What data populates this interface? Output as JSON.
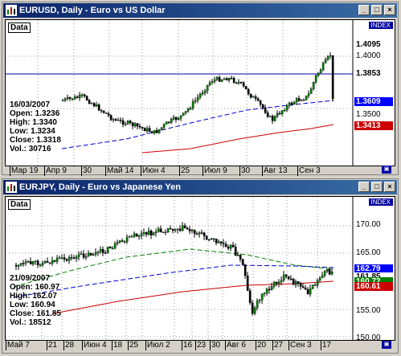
{
  "window1": {
    "title": "EURUSD, Daily - Euro vs US Dollar",
    "data_label": "Data",
    "index_label": "INDEX",
    "info": {
      "date": "16/03/2007",
      "open": "Open: 1.3236",
      "high": "High: 1.3340",
      "low": "Low: 1.3234",
      "close": "Close: 1.3318",
      "vol": "Vol.: 30716"
    },
    "price_labels": [
      {
        "text": "1.4095",
        "bg": "#ffffff",
        "fg": "#000000"
      },
      {
        "text": "1.4000",
        "bg": "transparent",
        "fg": "#000000"
      },
      {
        "text": "1.3853",
        "bg": "#ffffff",
        "fg": "#000000"
      },
      {
        "text": "1.3609",
        "bg": "#0000ff",
        "fg": "#ffffff"
      },
      {
        "text": "1.3500",
        "bg": "transparent",
        "fg": "#000000"
      },
      {
        "text": "1.3413",
        "bg": "#cc0000",
        "fg": "#ffffff"
      }
    ],
    "x_ticks": [
      "Мар 19",
      "Апр 9",
      "30",
      "Май 14",
      "Июн 4",
      "25",
      "Июл 9",
      "30",
      "Авг 13",
      "Сен 3"
    ]
  },
  "window2": {
    "title": "EURJPY, Daily - Euro vs Japanese Yen",
    "data_label": "Data",
    "index_label": "INDEX",
    "info": {
      "date": "21/09/2007",
      "open": "Open: 160.97",
      "high": "High: 162.07",
      "low": "Low: 160.94",
      "close": "Close: 161.85",
      "vol": "Vol.: 18512"
    },
    "price_labels": [
      {
        "text": "170.00",
        "bg": "transparent",
        "fg": "#000000"
      },
      {
        "text": "165.00",
        "bg": "transparent",
        "fg": "#000000"
      },
      {
        "text": "162.79",
        "bg": "#0000ff",
        "fg": "#ffffff"
      },
      {
        "text": "161.85",
        "bg": "#ffffff",
        "fg": "#000000"
      },
      {
        "text": "160.72",
        "bg": "#008000",
        "fg": "#ffffff"
      },
      {
        "text": "160.61",
        "bg": "#cc0000",
        "fg": "#ffffff"
      },
      {
        "text": "155.00",
        "bg": "transparent",
        "fg": "#000000"
      },
      {
        "text": "150.00",
        "bg": "transparent",
        "fg": "#000000"
      }
    ],
    "x_ticks": [
      "Май 7",
      "21",
      "28",
      "Июн 4",
      "18",
      "25",
      "Июл 2",
      "16",
      "23",
      "30",
      "Авг 6",
      "20",
      "27",
      "Сен 3",
      "17"
    ]
  },
  "colors": {
    "up_candle": "#008000",
    "down_candle": "#000000",
    "ma_blue": "#0000cc",
    "ma_red": "#cc0000",
    "ma_green": "#008000"
  }
}
